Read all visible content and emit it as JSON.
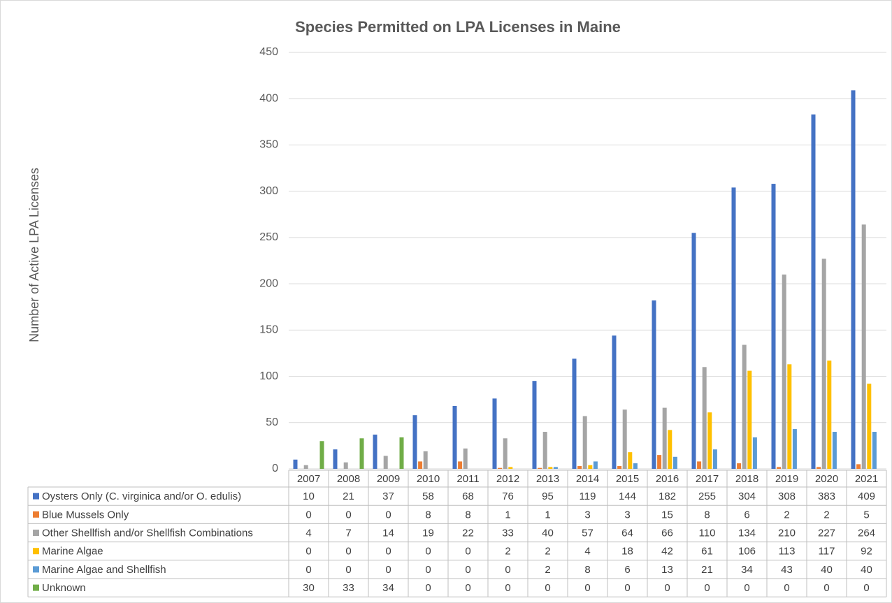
{
  "chart_data": {
    "type": "bar",
    "title": "Species Permitted on LPA Licenses in Maine",
    "y_label": "Number of  Active LPA Licenses",
    "categories": [
      "2007",
      "2008",
      "2009",
      "2010",
      "2011",
      "2012",
      "2013",
      "2014",
      "2015",
      "2016",
      "2017",
      "2018",
      "2019",
      "2020",
      "2021"
    ],
    "series": [
      {
        "name": "Oysters Only (C. virginica and/or O. edulis)",
        "color": "#4472c4",
        "values": [
          10,
          21,
          37,
          58,
          68,
          76,
          95,
          119,
          144,
          182,
          255,
          304,
          308,
          383,
          409
        ]
      },
      {
        "name": "Blue Mussels Only",
        "color": "#ed7d31",
        "values": [
          0,
          0,
          0,
          8,
          8,
          1,
          1,
          3,
          3,
          15,
          8,
          6,
          2,
          2,
          5
        ]
      },
      {
        "name": "Other Shellfish and/or Shellfish Combinations",
        "color": "#a5a5a5",
        "values": [
          4,
          7,
          14,
          19,
          22,
          33,
          40,
          57,
          64,
          66,
          110,
          134,
          210,
          227,
          264
        ]
      },
      {
        "name": "Marine Algae",
        "color": "#ffc000",
        "values": [
          0,
          0,
          0,
          0,
          0,
          2,
          2,
          4,
          18,
          42,
          61,
          106,
          113,
          117,
          92
        ]
      },
      {
        "name": "Marine Algae and Shellfish",
        "color": "#5b9bd5",
        "values": [
          0,
          0,
          0,
          0,
          0,
          0,
          2,
          8,
          6,
          13,
          21,
          34,
          43,
          40,
          40
        ]
      },
      {
        "name": "Unknown",
        "color": "#70ad47",
        "values": [
          30,
          33,
          34,
          0,
          0,
          0,
          0,
          0,
          0,
          0,
          0,
          0,
          0,
          0,
          0
        ]
      }
    ],
    "ylim": [
      0,
      450
    ],
    "yticks": [
      0,
      50,
      100,
      150,
      200,
      250,
      300,
      350,
      400,
      450
    ],
    "grid": true
  }
}
